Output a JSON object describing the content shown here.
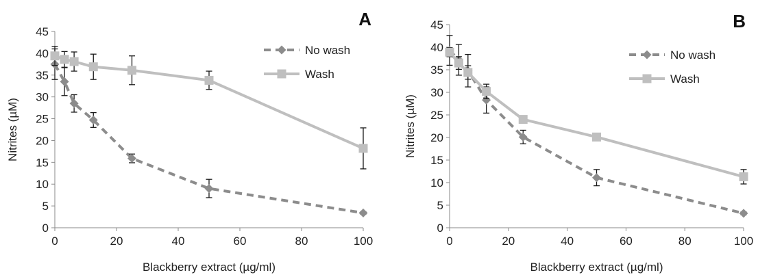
{
  "chart_data": [
    {
      "type": "line",
      "panel_label": "A",
      "xlabel": "Blackberry extract (µg/ml)",
      "ylabel": "Nitrites (µM)",
      "xlim": [
        0,
        100
      ],
      "ylim": [
        0,
        45
      ],
      "x_ticks": [
        0,
        20,
        40,
        60,
        80,
        100
      ],
      "y_ticks": [
        0,
        5,
        10,
        15,
        20,
        25,
        30,
        35,
        40,
        45
      ],
      "grid": false,
      "legend_position": "top-right",
      "series": [
        {
          "name": "No wash",
          "marker": "diamond",
          "line_style": "dashed",
          "color": "#8c8c8c",
          "x": [
            0,
            3.125,
            6.25,
            12.5,
            25,
            50,
            100
          ],
          "y": [
            37.5,
            33.5,
            28.5,
            24.7,
            15.9,
            9.0,
            3.4
          ],
          "error": [
            3.5,
            3.2,
            2.0,
            1.7,
            1.0,
            2.1,
            0.3
          ]
        },
        {
          "name": "Wash",
          "marker": "square",
          "line_style": "solid",
          "color": "#bfbfbf",
          "x": [
            0,
            3.125,
            6.25,
            12.5,
            25,
            50,
            100
          ],
          "y": [
            39.4,
            38.6,
            38.1,
            36.9,
            36.1,
            33.8,
            18.2
          ],
          "error": [
            2.2,
            1.8,
            2.2,
            2.9,
            3.3,
            2.1,
            4.7
          ]
        }
      ]
    },
    {
      "type": "line",
      "panel_label": "B",
      "xlabel": "Blackberry extract (µg/ml)",
      "ylabel": "Nitrites (µM)",
      "xlim": [
        0,
        100
      ],
      "ylim": [
        0,
        45
      ],
      "x_ticks": [
        0,
        20,
        40,
        60,
        80,
        100
      ],
      "y_ticks": [
        0,
        5,
        10,
        15,
        20,
        25,
        30,
        35,
        40,
        45
      ],
      "grid": false,
      "legend_position": "top-right",
      "series": [
        {
          "name": "No wash",
          "marker": "diamond",
          "line_style": "dashed",
          "color": "#8c8c8c",
          "x": [
            0,
            3.125,
            6.25,
            12.5,
            25,
            50,
            100
          ],
          "y": [
            39.3,
            37.2,
            34.8,
            28.3,
            20.1,
            11.1,
            3.2
          ],
          "error": [
            3.3,
            3.4,
            3.6,
            2.9,
            1.5,
            1.8,
            0.3
          ]
        },
        {
          "name": "Wash",
          "marker": "square",
          "line_style": "solid",
          "color": "#bfbfbf",
          "x": [
            0,
            3.125,
            6.25,
            12.5,
            25,
            50,
            100
          ],
          "y": [
            38.9,
            36.5,
            34.4,
            30.2,
            24.0,
            20.1,
            11.3
          ],
          "error": [
            1.0,
            1.4,
            1.5,
            1.6,
            0.5,
            0.4,
            1.6
          ]
        }
      ]
    }
  ]
}
